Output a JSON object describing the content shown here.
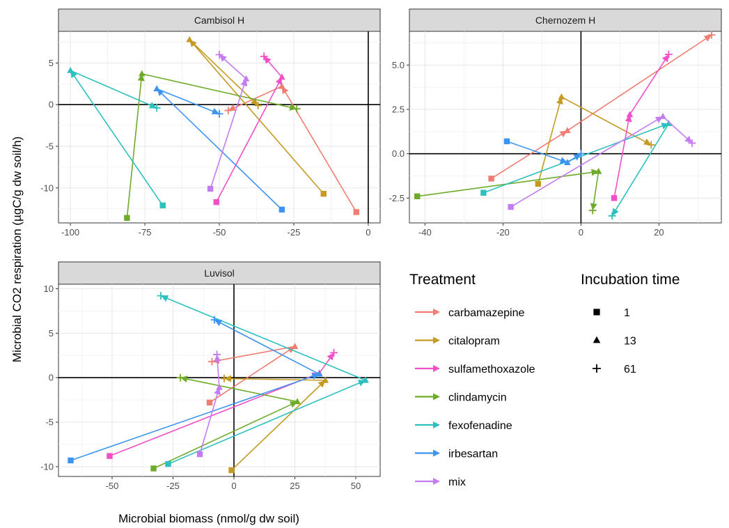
{
  "axes": {
    "xlabel": "Microbial biomass (nmol/g dw soil)",
    "ylabel": "Microbial CO2 respiration (µgC/g dw soil/h)"
  },
  "colors": {
    "carbamazepine": "#f07c72",
    "citalopram": "#c49a22",
    "sulfamethoxazole": "#f04fc8",
    "clindamycin": "#6fab2a",
    "fexofenadine": "#2cc0be",
    "irbesartan": "#3d93f0",
    "mix": "#c37cf2"
  },
  "legend": {
    "treatment_title": "Treatment",
    "treatments": [
      "carbamazepine",
      "citalopram",
      "sulfamethoxazole",
      "clindamycin",
      "fexofenadine",
      "irbesartan",
      "mix"
    ],
    "time_title": "Incubation time",
    "times": [
      {
        "label": "1",
        "shape": "square"
      },
      {
        "label": "13",
        "shape": "triangle"
      },
      {
        "label": "61",
        "shape": "plus"
      }
    ]
  },
  "chart_data": [
    {
      "type": "line",
      "title": "Cambisol H",
      "xlim": [
        -104,
        4
      ],
      "ylim": [
        -14.2,
        8.8
      ],
      "xticks": [
        -100,
        -75,
        -50,
        -25,
        0
      ],
      "yticks": [
        -10,
        -5,
        0,
        5
      ],
      "grid": true,
      "series": [
        {
          "name": "carbamazepine",
          "points": [
            [
              -4,
              -12.9
            ],
            [
              -29,
              2.2
            ],
            [
              -47,
              -0.7
            ]
          ]
        },
        {
          "name": "citalopram",
          "points": [
            [
              -15,
              -10.7
            ],
            [
              -60,
              7.8
            ],
            [
              -37,
              -0.1
            ]
          ]
        },
        {
          "name": "sulfamethoxazole",
          "points": [
            [
              -51,
              -11.7
            ],
            [
              -29,
              3.3
            ],
            [
              -35,
              5.8
            ]
          ]
        },
        {
          "name": "clindamycin",
          "points": [
            [
              -81,
              -13.6
            ],
            [
              -76,
              3.7
            ],
            [
              -24,
              -0.5
            ]
          ]
        },
        {
          "name": "fexofenadine",
          "points": [
            [
              -69,
              -12.1
            ],
            [
              -100,
              4.1
            ],
            [
              -71,
              -0.4
            ]
          ]
        },
        {
          "name": "irbesartan",
          "points": [
            [
              -29,
              -12.6
            ],
            [
              -71,
              1.9
            ],
            [
              -50,
              -1.1
            ]
          ]
        },
        {
          "name": "mix",
          "points": [
            [
              -53,
              -10.1
            ],
            [
              -41,
              3.1
            ],
            [
              -50,
              6.0
            ]
          ]
        }
      ]
    },
    {
      "type": "line",
      "title": "Chernozem H",
      "xlim": [
        -44,
        36
      ],
      "ylim": [
        -3.9,
        6.9
      ],
      "xticks": [
        -40,
        -20,
        0,
        20
      ],
      "yticks": [
        -2.5,
        0.0,
        2.5,
        5.0
      ],
      "ytick_labels": [
        "-2.5",
        "0.0",
        "2.5",
        "5.0"
      ],
      "grid": true,
      "series": [
        {
          "name": "carbamazepine",
          "points": [
            [
              -23,
              -1.4
            ],
            [
              -3.5,
              1.3
            ],
            [
              33.5,
              6.7
            ]
          ]
        },
        {
          "name": "citalopram",
          "points": [
            [
              -11,
              -1.7
            ],
            [
              -5,
              3.2
            ],
            [
              18,
              0.5
            ]
          ]
        },
        {
          "name": "sulfamethoxazole",
          "points": [
            [
              8.5,
              -2.5
            ],
            [
              12.5,
              2.2
            ],
            [
              22.5,
              5.6
            ]
          ]
        },
        {
          "name": "clindamycin",
          "points": [
            [
              -42,
              -2.4
            ],
            [
              4.5,
              -1.0
            ],
            [
              3,
              -3.2
            ]
          ]
        },
        {
          "name": "fexofenadine",
          "points": [
            [
              -25,
              -2.2
            ],
            [
              22.5,
              1.7
            ],
            [
              8,
              -3.5
            ]
          ]
        },
        {
          "name": "irbesartan",
          "points": [
            [
              -19,
              0.7
            ],
            [
              -3.5,
              -0.5
            ],
            [
              0,
              0.0
            ]
          ]
        },
        {
          "name": "mix",
          "points": [
            [
              -18,
              -3.0
            ],
            [
              21,
              2.1
            ],
            [
              28.5,
              0.6
            ]
          ]
        }
      ]
    },
    {
      "type": "line",
      "title": "Luvisol",
      "xlim": [
        -72,
        60
      ],
      "ylim": [
        -11.1,
        10.5
      ],
      "xticks": [
        -50,
        -25,
        0,
        25,
        50
      ],
      "yticks": [
        -10,
        -5,
        0,
        5,
        10
      ],
      "grid": true,
      "series": [
        {
          "name": "carbamazepine",
          "points": [
            [
              -10,
              -2.8
            ],
            [
              25,
              3.5
            ],
            [
              -9,
              1.8
            ]
          ]
        },
        {
          "name": "citalopram",
          "points": [
            [
              -1,
              -10.4
            ],
            [
              37.5,
              -0.3
            ],
            [
              -4,
              -0.1
            ]
          ]
        },
        {
          "name": "sulfamethoxazole",
          "points": [
            [
              -51,
              -8.8
            ],
            [
              35,
              0.5
            ],
            [
              41,
              2.8
            ]
          ]
        },
        {
          "name": "clindamycin",
          "points": [
            [
              -33,
              -10.2
            ],
            [
              26,
              -2.7
            ],
            [
              -22,
              0.0
            ]
          ]
        },
        {
          "name": "fexofenadine",
          "points": [
            [
              -27,
              -9.7
            ],
            [
              54,
              -0.3
            ],
            [
              -30,
              9.2
            ]
          ]
        },
        {
          "name": "irbesartan",
          "points": [
            [
              -67,
              -9.3
            ],
            [
              35,
              0.4
            ],
            [
              -8,
              6.5
            ]
          ]
        },
        {
          "name": "mix",
          "points": [
            [
              -14,
              -8.6
            ],
            [
              -6,
              -1.1
            ],
            [
              -7,
              2.6
            ]
          ]
        }
      ]
    }
  ]
}
